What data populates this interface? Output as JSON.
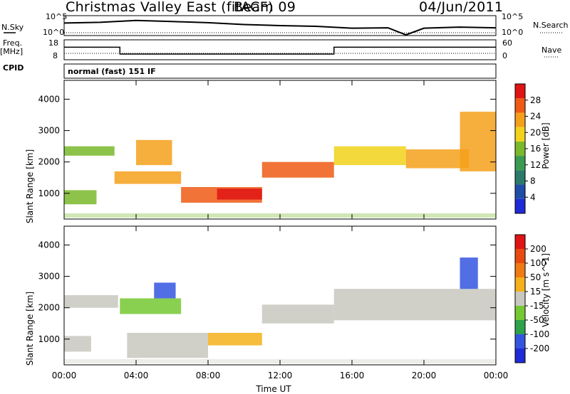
{
  "header": {
    "station": "Christmas Valley East (fitACF)",
    "beam": "Beam 09",
    "date": "04/Jun/2011"
  },
  "sidebar": {
    "nsky": "N.Sky",
    "freq": "Freq.",
    "freq_unit": "[MHz]",
    "cpid": "CPID",
    "nsearch": "N.Search",
    "nave": "Nave"
  },
  "aux": {
    "noise_ticks_left": [
      "10^5",
      "10^0"
    ],
    "noise_ticks_right": [
      "10^5",
      "10^0"
    ],
    "freq_ticks_left": [
      "18",
      "8"
    ],
    "nave_ticks_right": [
      "60",
      "0"
    ],
    "cpid_text": "normal (fast) 151 IF"
  },
  "x_axis": {
    "label": "Time UT",
    "ticks": [
      "00:00",
      "04:00",
      "08:00",
      "12:00",
      "16:00",
      "20:00",
      "00:00"
    ]
  },
  "y_axis": {
    "label": "Slant Range [km]",
    "ticks": [
      "1000",
      "2000",
      "3000",
      "4000"
    ]
  },
  "colorbars": {
    "power": {
      "label": "Power [dB]",
      "ticks": [
        "4",
        "8",
        "12",
        "16",
        "20",
        "24",
        "28"
      ],
      "colors": [
        "#1e2bd6",
        "#1f4da8",
        "#2c7a6a",
        "#3a9a52",
        "#7ab82c",
        "#f2d21a",
        "#f5a01a",
        "#ef5a15",
        "#e01414"
      ]
    },
    "velocity": {
      "label": "Velocity [m s^-1]",
      "ticks": [
        "200",
        "100",
        "50",
        "15",
        "-15",
        "-50",
        "-100",
        "-200"
      ],
      "colors": [
        "#1e2bd6",
        "#3355e0",
        "#2ea24a",
        "#74c832",
        "#c8c8c0",
        "#f5b01a",
        "#f07a14",
        "#e84a10",
        "#e01414"
      ]
    }
  },
  "chart_data": [
    {
      "type": "line",
      "title": "N.Sky / N.Search",
      "x": [
        0,
        2,
        4,
        6,
        8,
        10,
        12,
        14,
        16,
        18,
        19,
        20,
        22,
        24
      ],
      "series": [
        {
          "name": "N.Sky",
          "values": [
            3.2,
            3.4,
            3.9,
            3.6,
            3.3,
            2.8,
            2.5,
            2.3,
            1.8,
            1.9,
            0,
            1.8,
            2.1,
            1.9
          ]
        },
        {
          "name": "N.Search",
          "values": [
            0.2,
            0.2,
            0.2,
            0.2,
            0.2,
            0.2,
            0.2,
            0.2,
            0.2,
            0.2,
            0.2,
            0.2,
            0.2,
            0.2
          ]
        }
      ],
      "ylim": [
        0,
        5
      ]
    },
    {
      "type": "line",
      "title": "Freq / Nave",
      "x": [
        0,
        3.1,
        3.1,
        15.0,
        15.0,
        19.0,
        19.0,
        24
      ],
      "series": [
        {
          "name": "Freq.",
          "values": [
            14.5,
            14.5,
            10.5,
            10.5,
            14.5,
            14.5,
            14.5,
            14.5
          ]
        },
        {
          "name": "Nave",
          "values": [
            9,
            9,
            9,
            9,
            9,
            9,
            9,
            9
          ]
        }
      ],
      "ylim": [
        8,
        18
      ]
    },
    {
      "type": "heatmap",
      "title": "Power [dB]",
      "xlabel": "Time UT",
      "ylabel": "Slant Range [km]",
      "xlim": [
        0,
        24
      ],
      "ylim": [
        180,
        4600
      ],
      "regions": [
        {
          "t0": 0.0,
          "t1": 1.8,
          "r0": 650,
          "r1": 1100,
          "value": 14
        },
        {
          "t0": 0.0,
          "t1": 2.8,
          "r0": 2200,
          "r1": 2500,
          "value": 16
        },
        {
          "t0": 2.8,
          "t1": 6.5,
          "r0": 1300,
          "r1": 1700,
          "value": 22
        },
        {
          "t0": 4.0,
          "t1": 6.0,
          "r0": 1900,
          "r1": 2700,
          "value": 20
        },
        {
          "t0": 6.5,
          "t1": 11.0,
          "r0": 700,
          "r1": 1200,
          "value": 26
        },
        {
          "t0": 8.5,
          "t1": 11.0,
          "r0": 800,
          "r1": 1150,
          "value": 28
        },
        {
          "t0": 11.0,
          "t1": 15.0,
          "r0": 1500,
          "r1": 2000,
          "value": 24
        },
        {
          "t0": 15.0,
          "t1": 19.0,
          "r0": 1900,
          "r1": 2500,
          "value": 18
        },
        {
          "t0": 19.0,
          "t1": 22.5,
          "r0": 1800,
          "r1": 2400,
          "value": 20
        },
        {
          "t0": 22.0,
          "t1": 24.0,
          "r0": 1700,
          "r1": 3600,
          "value": 22
        }
      ],
      "zlim": [
        0,
        30
      ]
    },
    {
      "type": "heatmap",
      "title": "Velocity [m s^-1]",
      "xlabel": "Time UT",
      "ylabel": "Slant Range [km]",
      "xlim": [
        0,
        24
      ],
      "ylim": [
        180,
        4600
      ],
      "regions": [
        {
          "t0": 0.0,
          "t1": 3.0,
          "r0": 2000,
          "r1": 2400,
          "value": 0
        },
        {
          "t0": 0.0,
          "t1": 1.5,
          "r0": 600,
          "r1": 1100,
          "value": 0
        },
        {
          "t0": 3.1,
          "t1": 6.5,
          "r0": 1800,
          "r1": 2300,
          "value": 40
        },
        {
          "t0": 5.0,
          "t1": 6.2,
          "r0": 2300,
          "r1": 2800,
          "value": 180
        },
        {
          "t0": 3.5,
          "t1": 8.0,
          "r0": 400,
          "r1": 1200,
          "value": 0
        },
        {
          "t0": 8.0,
          "t1": 11.0,
          "r0": 800,
          "r1": 1200,
          "value": -40
        },
        {
          "t0": 11.0,
          "t1": 15.0,
          "r0": 1500,
          "r1": 2100,
          "value": 0
        },
        {
          "t0": 15.0,
          "t1": 24.0,
          "r0": 1600,
          "r1": 2600,
          "value": 0
        },
        {
          "t0": 22.0,
          "t1": 23.0,
          "r0": 2600,
          "r1": 3600,
          "value": 180
        }
      ],
      "zlim": [
        -250,
        250
      ]
    }
  ]
}
